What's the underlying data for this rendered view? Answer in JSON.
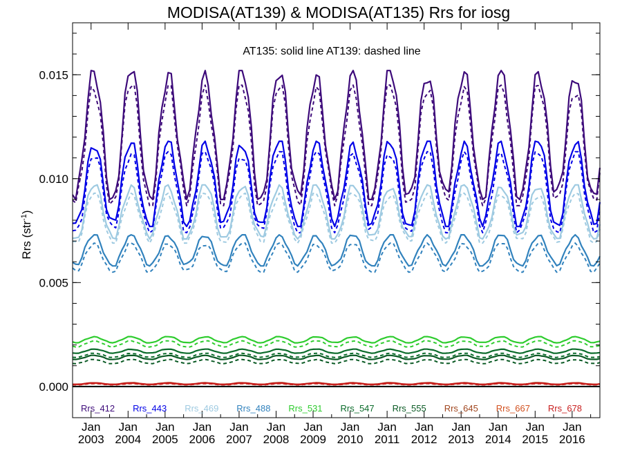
{
  "chart_data": {
    "type": "line",
    "title": "MODISA(AT139) & MODISA(AT135)  Rrs for iosg",
    "annotation": "AT135: solid line   AT139: dashed line",
    "ylabel_main": "Rrs (str",
    "ylabel_sup": "-1",
    "ylabel_close": ")",
    "xlabel": "",
    "x_start": "2002-07",
    "x_end": "2016-10",
    "ylim": [
      -0.0015,
      0.0175
    ],
    "yticks": [
      "0.000",
      "0.005",
      "0.010",
      "0.015"
    ],
    "ytick_values": [
      0.0,
      0.005,
      0.01,
      0.015
    ],
    "xticks": [
      {
        "month": "Jan",
        "year": "2003",
        "date": "2003-01"
      },
      {
        "month": "Jan",
        "year": "2004",
        "date": "2004-01"
      },
      {
        "month": "Jan",
        "year": "2005",
        "date": "2005-01"
      },
      {
        "month": "Jan",
        "year": "2006",
        "date": "2006-01"
      },
      {
        "month": "Jan",
        "year": "2007",
        "date": "2007-01"
      },
      {
        "month": "Jan",
        "year": "2008",
        "date": "2008-01"
      },
      {
        "month": "Jan",
        "year": "2009",
        "date": "2009-01"
      },
      {
        "month": "Jan",
        "year": "2010",
        "date": "2010-01"
      },
      {
        "month": "Jan",
        "year": "2011",
        "date": "2011-01"
      },
      {
        "month": "Jan",
        "year": "2012",
        "date": "2012-01"
      },
      {
        "month": "Jan",
        "year": "2013",
        "date": "2013-01"
      },
      {
        "month": "Jan",
        "year": "2014",
        "date": "2014-01"
      },
      {
        "month": "Jan",
        "year": "2015",
        "date": "2015-01"
      },
      {
        "month": "Jan",
        "year": "2016",
        "date": "2016-01"
      }
    ],
    "zero_line": true,
    "legend_placement": "bottom inside plot",
    "series": [
      {
        "name": "Rrs_412",
        "color": "#3d0a7a",
        "at135": {
          "min": 0.009,
          "max": 0.0152
        },
        "at139": {
          "min": 0.0087,
          "max": 0.0145
        }
      },
      {
        "name": "Rrs_443",
        "color": "#0000e6",
        "at135": {
          "min": 0.0077,
          "max": 0.0118
        },
        "at139": {
          "min": 0.0074,
          "max": 0.0113
        }
      },
      {
        "name": "Rrs_469",
        "color": "#9ecae1",
        "at135": {
          "min": 0.0071,
          "max": 0.0097
        },
        "at139": {
          "min": 0.0069,
          "max": 0.0093
        }
      },
      {
        "name": "Rrs_488",
        "color": "#3182bd",
        "at135": {
          "min": 0.0058,
          "max": 0.0073
        },
        "at139": {
          "min": 0.0055,
          "max": 0.0069
        }
      },
      {
        "name": "Rrs_531",
        "color": "#2ecc2e",
        "at135": {
          "min": 0.0021,
          "max": 0.0024
        },
        "at139": {
          "min": 0.0019,
          "max": 0.0022
        }
      },
      {
        "name": "Rrs_547",
        "color": "#0a6b2a",
        "at135": {
          "min": 0.0016,
          "max": 0.0018
        },
        "at139": {
          "min": 0.0014,
          "max": 0.0016
        }
      },
      {
        "name": "Rrs_555",
        "color": "#0a5a24",
        "at135": {
          "min": 0.0013,
          "max": 0.0015
        },
        "at139": {
          "min": 0.0011,
          "max": 0.0013
        }
      },
      {
        "name": "Rrs_645",
        "color": "#a0461e",
        "at135": {
          "min": 0.0001,
          "max": 0.00018
        },
        "at139": {
          "min": 8e-05,
          "max": 0.00015
        }
      },
      {
        "name": "Rrs_667",
        "color": "#d2501e",
        "at135": {
          "min": 0.0001,
          "max": 0.00016
        },
        "at139": {
          "min": 8e-05,
          "max": 0.00014
        }
      },
      {
        "name": "Rrs_678",
        "color": "#c81e1e",
        "at135": {
          "min": 0.0001,
          "max": 0.00017
        },
        "at139": {
          "min": 8e-05,
          "max": 0.00014
        }
      }
    ]
  }
}
